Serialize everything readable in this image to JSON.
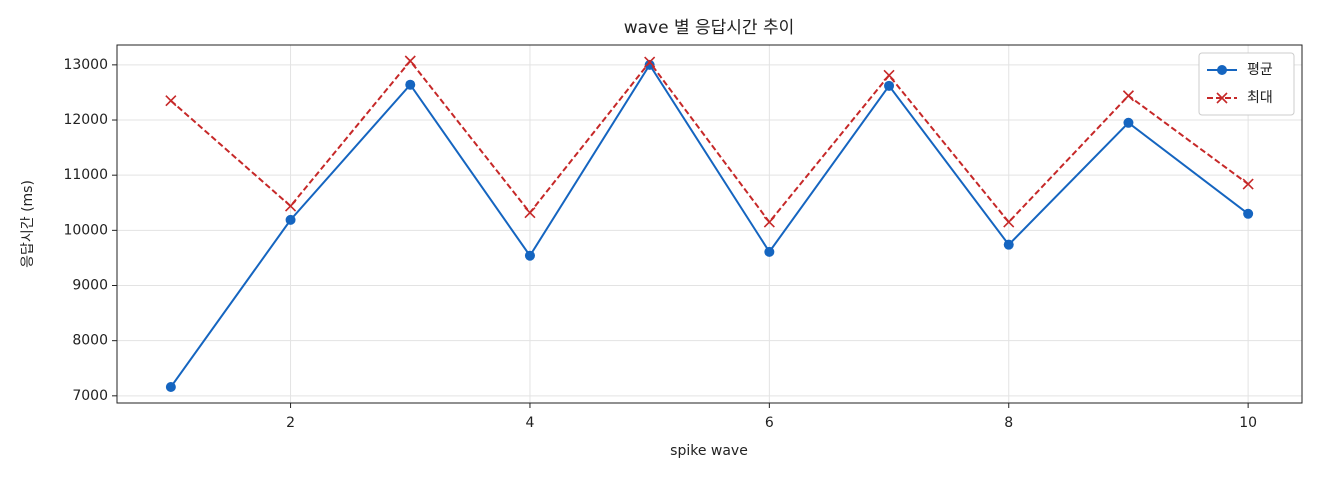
{
  "chart_data": {
    "type": "line",
    "title": "wave 별 응답시간 추이",
    "x_label": "spike wave",
    "y_label": "응답시간 (ms)",
    "x": [
      1,
      2,
      3,
      4,
      5,
      6,
      7,
      8,
      9,
      10
    ],
    "series": [
      {
        "name": "평균",
        "color": "#1565c0",
        "marker": "o",
        "linestyle": "solid",
        "values": [
          7160,
          10190,
          12640,
          9540,
          13000,
          9610,
          12620,
          9740,
          11950,
          10300
        ]
      },
      {
        "name": "최대",
        "color": "#c62828",
        "marker": "x",
        "linestyle": "dashed",
        "values": [
          12350,
          10440,
          13070,
          10320,
          13050,
          10150,
          12810,
          10150,
          12440,
          10840
        ]
      }
    ],
    "xlim": [
      0.55,
      10.45
    ],
    "ylim": [
      6870,
      13360
    ],
    "xticks": [
      2,
      4,
      6,
      8,
      10
    ],
    "yticks": [
      7000,
      8000,
      9000,
      10000,
      11000,
      12000,
      13000
    ],
    "grid": true,
    "legend": "upper right"
  }
}
